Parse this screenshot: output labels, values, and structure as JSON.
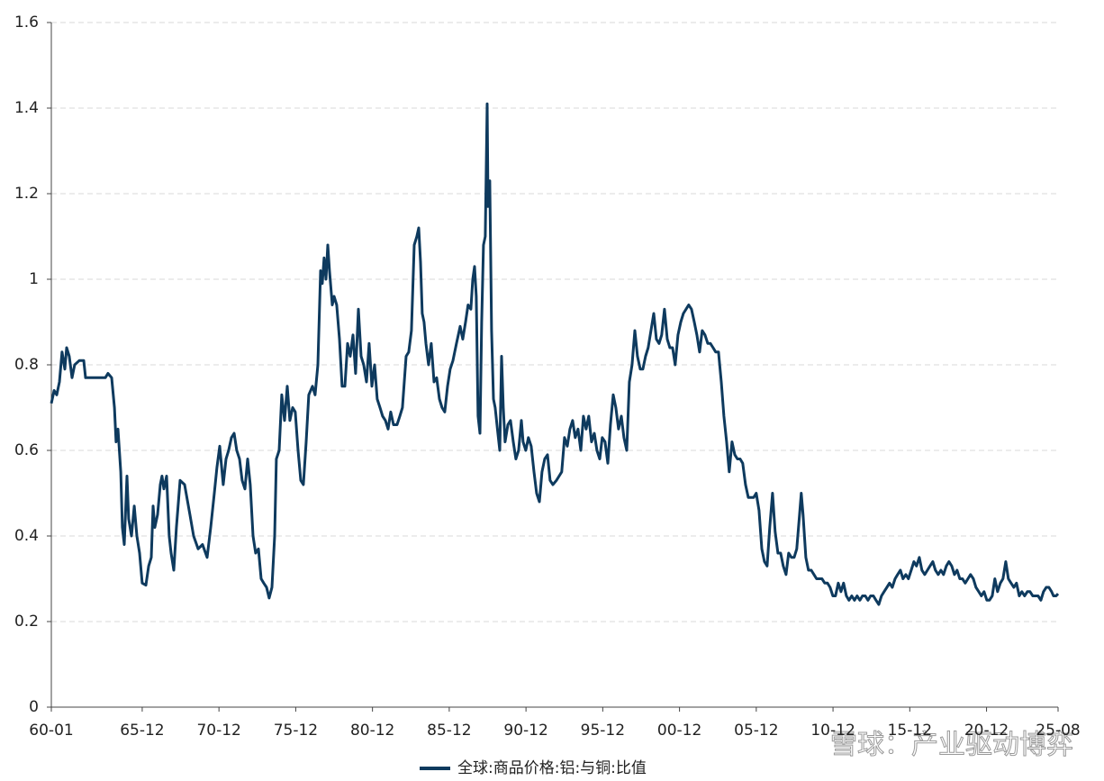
{
  "chart_data": {
    "type": "line",
    "x": [
      1960.0,
      1960.18,
      1960.35,
      1960.53,
      1960.7,
      1960.88,
      1961.0,
      1961.17,
      1961.35,
      1961.52,
      1961.82,
      1962.11,
      1962.23,
      1963.52,
      1963.69,
      1963.93,
      1964.11,
      1964.22,
      1964.34,
      1964.52,
      1964.63,
      1964.75,
      1964.93,
      1965.04,
      1965.22,
      1965.4,
      1965.57,
      1965.75,
      1965.92,
      1966.16,
      1966.34,
      1966.51,
      1966.63,
      1966.74,
      1966.92,
      1967.1,
      1967.21,
      1967.33,
      1967.51,
      1967.68,
      1967.8,
      1967.98,
      1968.15,
      1968.39,
      1968.68,
      1969.03,
      1969.27,
      1969.56,
      1969.85,
      1970.15,
      1970.38,
      1970.62,
      1970.79,
      1970.97,
      1971.2,
      1971.38,
      1971.55,
      1971.73,
      1971.91,
      1972.08,
      1972.26,
      1972.43,
      1972.61,
      1972.79,
      1972.96,
      1973.14,
      1973.31,
      1973.49,
      1973.67,
      1973.84,
      1974.02,
      1974.19,
      1974.37,
      1974.55,
      1974.66,
      1974.84,
      1975.01,
      1975.19,
      1975.37,
      1975.54,
      1975.72,
      1975.89,
      1976.07,
      1976.25,
      1976.42,
      1976.6,
      1976.77,
      1977.01,
      1977.18,
      1977.36,
      1977.54,
      1977.65,
      1977.77,
      1977.89,
      1978.01,
      1978.12,
      1978.3,
      1978.42,
      1978.59,
      1978.77,
      1978.94,
      1979.12,
      1979.3,
      1979.47,
      1979.65,
      1979.82,
      1980.0,
      1980.18,
      1980.35,
      1980.53,
      1980.7,
      1980.88,
      1981.06,
      1981.23,
      1981.41,
      1981.58,
      1981.76,
      1981.94,
      1982.11,
      1982.29,
      1982.52,
      1982.7,
      1982.87,
      1983.11,
      1983.28,
      1983.46,
      1983.64,
      1983.81,
      1983.93,
      1984.05,
      1984.16,
      1984.28,
      1984.4,
      1984.57,
      1984.75,
      1984.93,
      1985.1,
      1985.28,
      1985.45,
      1985.63,
      1985.81,
      1985.98,
      1986.16,
      1986.39,
      1986.63,
      1986.8,
      1986.98,
      1987.15,
      1987.33,
      1987.45,
      1987.57,
      1987.68,
      1987.8,
      1987.92,
      1988.03,
      1988.15,
      1988.27,
      1988.39,
      1988.45,
      1988.56,
      1988.68,
      1988.8,
      1988.91,
      1989.09,
      1989.21,
      1989.33,
      1989.44,
      1989.56,
      1989.74,
      1989.91,
      1990.09,
      1990.26,
      1990.44,
      1990.62,
      1990.73,
      1990.91,
      1991.08,
      1991.26,
      1991.44,
      1991.61,
      1991.79,
      1991.96,
      1992.14,
      1992.32,
      1992.49,
      1992.67,
      1992.9,
      1993.08,
      1993.25,
      1993.43,
      1993.61,
      1993.78,
      1993.96,
      1994.13,
      1994.31,
      1994.49,
      1994.66,
      1994.84,
      1995.01,
      1995.19,
      1995.37,
      1995.54,
      1995.72,
      1995.89,
      1996.07,
      1996.25,
      1996.42,
      1996.6,
      1996.77,
      1996.95,
      1997.13,
      1997.3,
      1997.48,
      1997.65,
      1997.83,
      1998.01,
      1998.18,
      1998.36,
      1998.53,
      1998.71,
      1998.88,
      1999.06,
      1999.24,
      1999.41,
      1999.59,
      1999.76,
      1999.94,
      2000.12,
      2000.29,
      2000.47,
      2000.64,
      2000.82,
      2001.0,
      2001.17,
      2001.35,
      2001.52,
      2001.7,
      2001.88,
      2002.05,
      2002.23,
      2002.4,
      2002.58,
      2002.76,
      2002.93,
      2003.11,
      2003.28,
      2003.46,
      2003.64,
      2003.81,
      2003.99,
      2004.16,
      2004.34,
      2004.52,
      2004.69,
      2004.87,
      2005.04,
      2005.22,
      2005.4,
      2005.57,
      2005.75,
      2005.92,
      2006.1,
      2006.28,
      2006.45,
      2006.63,
      2006.8,
      2006.98,
      2007.15,
      2007.33,
      2007.51,
      2007.68,
      2007.86,
      2008.03,
      2008.21,
      2008.39,
      2008.56,
      2008.74,
      2008.85,
      2008.97,
      2009.15,
      2009.32,
      2009.5,
      2009.68,
      2009.85,
      2010.03,
      2010.2,
      2010.38,
      2010.56,
      2010.73,
      2010.91,
      2011.08,
      2011.26,
      2011.44,
      2011.61,
      2011.79,
      2011.96,
      2012.14,
      2012.32,
      2012.49,
      2012.67,
      2012.84,
      2013.02,
      2013.2,
      2013.37,
      2013.55,
      2013.72,
      2013.9,
      2014.08,
      2014.25,
      2014.43,
      2014.6,
      2014.78,
      2014.96,
      2015.13,
      2015.31,
      2015.48,
      2015.66,
      2015.83,
      2016.01,
      2016.19,
      2016.36,
      2016.54,
      2016.71,
      2016.89,
      2017.07,
      2017.24,
      2017.42,
      2017.59,
      2017.77,
      2017.95,
      2018.12,
      2018.3,
      2018.47,
      2018.65,
      2018.83,
      2019.0,
      2019.18,
      2019.35,
      2019.53,
      2019.71,
      2019.88,
      2020.06,
      2020.23,
      2020.41,
      2020.58,
      2020.76,
      2020.94,
      2021.11,
      2021.29,
      2021.46,
      2021.64,
      2021.82,
      2021.99,
      2022.17,
      2022.34,
      2022.52,
      2022.7,
      2022.87,
      2023.05,
      2023.22,
      2023.4,
      2023.58,
      2023.75,
      2023.93,
      2024.1,
      2024.28,
      2024.46,
      2024.63,
      2024.81,
      2024.98,
      2025.16,
      2025.28,
      2025.45,
      2025.58
    ],
    "series": [
      {
        "name": "全球:商品价格:铝:与铜:比值",
        "color": "#0e3a5e",
        "values": [
          0.71,
          0.74,
          0.73,
          0.76,
          0.83,
          0.79,
          0.84,
          0.82,
          0.77,
          0.8,
          0.81,
          0.81,
          0.77,
          0.77,
          0.78,
          0.77,
          0.7,
          0.62,
          0.65,
          0.55,
          0.42,
          0.38,
          0.54,
          0.44,
          0.4,
          0.47,
          0.4,
          0.36,
          0.29,
          0.285,
          0.33,
          0.35,
          0.47,
          0.42,
          0.45,
          0.52,
          0.54,
          0.51,
          0.54,
          0.4,
          0.36,
          0.32,
          0.42,
          0.53,
          0.52,
          0.45,
          0.4,
          0.37,
          0.38,
          0.35,
          0.42,
          0.5,
          0.56,
          0.61,
          0.52,
          0.58,
          0.6,
          0.63,
          0.64,
          0.6,
          0.58,
          0.53,
          0.51,
          0.58,
          0.52,
          0.4,
          0.36,
          0.37,
          0.3,
          0.29,
          0.28,
          0.255,
          0.28,
          0.4,
          0.58,
          0.6,
          0.73,
          0.67,
          0.75,
          0.67,
          0.7,
          0.69,
          0.6,
          0.53,
          0.52,
          0.62,
          0.73,
          0.75,
          0.73,
          0.8,
          1.02,
          0.99,
          1.05,
          1.0,
          1.08,
          1.02,
          0.94,
          0.96,
          0.94,
          0.86,
          0.75,
          0.75,
          0.85,
          0.82,
          0.87,
          0.78,
          0.93,
          0.82,
          0.8,
          0.76,
          0.85,
          0.75,
          0.8,
          0.72,
          0.7,
          0.68,
          0.67,
          0.65,
          0.69,
          0.66,
          0.66,
          0.68,
          0.7,
          0.82,
          0.83,
          0.88,
          1.08,
          1.1,
          1.12,
          1.04,
          0.92,
          0.9,
          0.85,
          0.8,
          0.85,
          0.76,
          0.77,
          0.72,
          0.7,
          0.69,
          0.75,
          0.79,
          0.81,
          0.85,
          0.89,
          0.86,
          0.9,
          0.94,
          0.93,
          1.0,
          1.03,
          0.96,
          0.68,
          0.64,
          0.9,
          1.08,
          1.1,
          1.41,
          1.17,
          1.23,
          0.88,
          0.72,
          0.7,
          0.64,
          0.6,
          0.82,
          0.7,
          0.62,
          0.66,
          0.67,
          0.62,
          0.58,
          0.6,
          0.67,
          0.62,
          0.6,
          0.63,
          0.61,
          0.55,
          0.5,
          0.48,
          0.55,
          0.58,
          0.59,
          0.53,
          0.52,
          0.53,
          0.54,
          0.55,
          0.63,
          0.61,
          0.65,
          0.67,
          0.63,
          0.65,
          0.6,
          0.68,
          0.65,
          0.68,
          0.62,
          0.64,
          0.6,
          0.58,
          0.63,
          0.62,
          0.57,
          0.66,
          0.73,
          0.7,
          0.65,
          0.68,
          0.63,
          0.6,
          0.76,
          0.8,
          0.88,
          0.82,
          0.79,
          0.79,
          0.82,
          0.84,
          0.88,
          0.92,
          0.86,
          0.85,
          0.87,
          0.93,
          0.86,
          0.84,
          0.84,
          0.8,
          0.87,
          0.9,
          0.92,
          0.93,
          0.94,
          0.93,
          0.9,
          0.87,
          0.83,
          0.88,
          0.87,
          0.85,
          0.85,
          0.84,
          0.83,
          0.83,
          0.76,
          0.68,
          0.62,
          0.55,
          0.62,
          0.59,
          0.58,
          0.58,
          0.57,
          0.52,
          0.49,
          0.49,
          0.49,
          0.5,
          0.46,
          0.37,
          0.34,
          0.33,
          0.42,
          0.5,
          0.41,
          0.36,
          0.36,
          0.33,
          0.31,
          0.36,
          0.35,
          0.35,
          0.37,
          0.45,
          0.5,
          0.45,
          0.35,
          0.32,
          0.32,
          0.31,
          0.3,
          0.3,
          0.3,
          0.29,
          0.29,
          0.28,
          0.26,
          0.26,
          0.29,
          0.27,
          0.29,
          0.26,
          0.25,
          0.26,
          0.25,
          0.26,
          0.25,
          0.26,
          0.26,
          0.25,
          0.26,
          0.26,
          0.25,
          0.24,
          0.26,
          0.27,
          0.28,
          0.29,
          0.28,
          0.3,
          0.31,
          0.32,
          0.3,
          0.31,
          0.3,
          0.32,
          0.34,
          0.33,
          0.35,
          0.32,
          0.31,
          0.32,
          0.33,
          0.34,
          0.32,
          0.31,
          0.32,
          0.31,
          0.33,
          0.34,
          0.33,
          0.31,
          0.32,
          0.3,
          0.3,
          0.29,
          0.3,
          0.31,
          0.3,
          0.28,
          0.27,
          0.26,
          0.27,
          0.25,
          0.25,
          0.26,
          0.3,
          0.27,
          0.29,
          0.3,
          0.34,
          0.3,
          0.29,
          0.28,
          0.29,
          0.26,
          0.27,
          0.26,
          0.27,
          0.27,
          0.26,
          0.26,
          0.26,
          0.25,
          0.27,
          0.28,
          0.28,
          0.27,
          0.26,
          0.26,
          0.265
        ]
      }
    ],
    "xlim": [
      1960,
      2025.58
    ],
    "xticks": [
      {
        "value": 1960.0,
        "label": "60-01"
      },
      {
        "value": 1965.92,
        "label": "65-12"
      },
      {
        "value": 1970.92,
        "label": "70-12"
      },
      {
        "value": 1975.92,
        "label": "75-12"
      },
      {
        "value": 1980.92,
        "label": "80-12"
      },
      {
        "value": 1985.92,
        "label": "85-12"
      },
      {
        "value": 1990.92,
        "label": "90-12"
      },
      {
        "value": 1995.92,
        "label": "95-12"
      },
      {
        "value": 2000.92,
        "label": "00-12"
      },
      {
        "value": 2005.92,
        "label": "05-12"
      },
      {
        "value": 2010.92,
        "label": "10-12"
      },
      {
        "value": 2015.92,
        "label": "15-12"
      },
      {
        "value": 2020.92,
        "label": "20-12"
      },
      {
        "value": 2025.58,
        "label": "25-08"
      }
    ],
    "ylim": [
      0,
      1.6
    ],
    "yticks": [
      0,
      0.2,
      0.4,
      0.6,
      0.8,
      1,
      1.2,
      1.4,
      1.6
    ],
    "grid": true,
    "legend": "bottom",
    "watermark": "雪球：产业驱动博弈"
  }
}
